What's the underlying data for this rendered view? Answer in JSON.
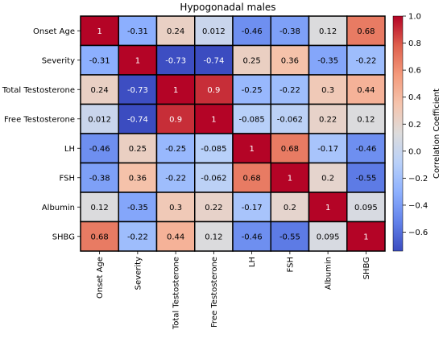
{
  "chart_data": {
    "type": "heatmap",
    "title": "Hypogonadal males",
    "rows": [
      "Onset Age",
      "Severity",
      "Total Testosterone",
      "Free Testosterone",
      "LH",
      "FSH",
      "Albumin",
      "SHBG"
    ],
    "columns": [
      "Onset Age",
      "Severity",
      "Total Testosterone",
      "Free Testosterone",
      "LH",
      "FSH",
      "Albumin",
      "SHBG"
    ],
    "values": [
      [
        1,
        -0.31,
        0.24,
        0.012,
        -0.46,
        -0.38,
        0.12,
        0.68
      ],
      [
        -0.31,
        1,
        -0.73,
        -0.74,
        0.25,
        0.36,
        -0.35,
        -0.22
      ],
      [
        0.24,
        -0.73,
        1,
        0.9,
        -0.25,
        -0.22,
        0.3,
        0.44
      ],
      [
        0.012,
        -0.74,
        0.9,
        1,
        -0.085,
        -0.062,
        0.22,
        0.12
      ],
      [
        -0.46,
        0.25,
        -0.25,
        -0.085,
        1,
        0.68,
        -0.17,
        -0.46
      ],
      [
        -0.38,
        0.36,
        -0.22,
        -0.062,
        0.68,
        1,
        0.2,
        -0.55
      ],
      [
        0.12,
        -0.35,
        0.3,
        0.22,
        -0.17,
        0.2,
        1,
        0.095
      ],
      [
        0.68,
        -0.22,
        0.44,
        0.12,
        -0.46,
        -0.55,
        0.095,
        1
      ]
    ],
    "value_labels": [
      [
        "1",
        "-0.31",
        "0.24",
        "0.012",
        "-0.46",
        "-0.38",
        "0.12",
        "0.68"
      ],
      [
        "-0.31",
        "1",
        "-0.73",
        "-0.74",
        "0.25",
        "0.36",
        "-0.35",
        "-0.22"
      ],
      [
        "0.24",
        "-0.73",
        "1",
        "0.9",
        "-0.25",
        "-0.22",
        "0.3",
        "0.44"
      ],
      [
        "0.012",
        "-0.74",
        "0.9",
        "1",
        "-0.085",
        "-0.062",
        "0.22",
        "0.12"
      ],
      [
        "-0.46",
        "0.25",
        "-0.25",
        "-0.085",
        "1",
        "0.68",
        "-0.17",
        "-0.46"
      ],
      [
        "-0.38",
        "0.36",
        "-0.22",
        "-0.062",
        "0.68",
        "1",
        "0.2",
        "-0.55"
      ],
      [
        "0.12",
        "-0.35",
        "0.3",
        "0.22",
        "-0.17",
        "0.2",
        "1",
        "0.095"
      ],
      [
        "0.68",
        "-0.22",
        "0.44",
        "0.12",
        "-0.46",
        "-0.55",
        "0.095",
        "1"
      ]
    ],
    "colormap": "coolwarm",
    "color_range": [
      -0.74,
      1.0
    ],
    "colorbar": {
      "label": "Correlation Coefficient",
      "ticks": [
        -0.6,
        -0.4,
        -0.2,
        0.0,
        0.2,
        0.4,
        0.6,
        0.8,
        1.0
      ],
      "tick_labels": [
        "−0.6",
        "−0.4",
        "−0.2",
        "0.0",
        "0.2",
        "0.4",
        "0.6",
        "0.8",
        "1.0"
      ],
      "position": "right"
    },
    "cell_borders": "#000000",
    "x_tick_rotation": "vertical",
    "grid": false
  }
}
